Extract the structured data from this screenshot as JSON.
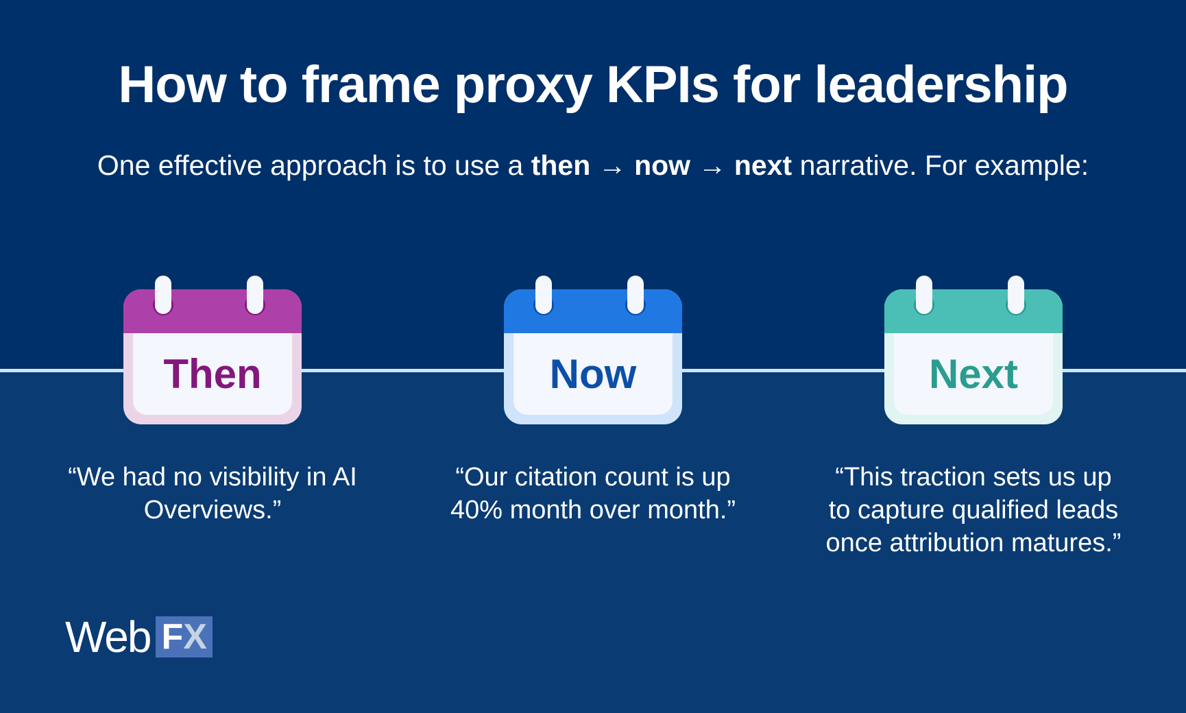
{
  "title": "How to frame proxy KPIs for leadership",
  "subtitle": {
    "pre": "One effective approach is to use a ",
    "then": "then",
    "arrow1": " → ",
    "now": "now",
    "arrow2": " → ",
    "next": "next",
    "post": " narrative. For example:"
  },
  "steps": [
    {
      "label": "Then",
      "quote": "“We had no visibility in AI Overviews.”",
      "colors": {
        "header": "#ae41a9",
        "text": "#83177c",
        "border": "#ecd4e8",
        "ring": "#83177c"
      }
    },
    {
      "label": "Now",
      "quote": "“Our citation count is up 40% month over month.”",
      "colors": {
        "header": "#2079e3",
        "text": "#0d4fa8",
        "border": "#cfe3fb",
        "ring": "#0d4fa8"
      }
    },
    {
      "label": "Next",
      "quote": "“This traction sets us up to capture qualified leads once attribution matures.”",
      "colors": {
        "header": "#4bbfb5",
        "text": "#2a9d8f",
        "border": "#e0f5f2",
        "ring": "#2a9d8f"
      }
    }
  ],
  "logo": {
    "web": "Web",
    "f": "F",
    "x": "X"
  }
}
